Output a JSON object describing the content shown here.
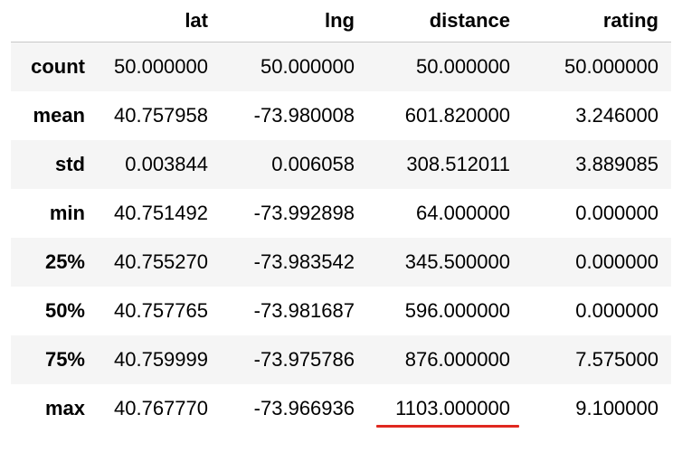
{
  "table": {
    "columns": [
      "lat",
      "lng",
      "distance",
      "rating"
    ],
    "rows": [
      {
        "label": "count",
        "values": [
          "50.000000",
          "50.000000",
          "50.000000",
          "50.000000"
        ]
      },
      {
        "label": "mean",
        "values": [
          "40.757958",
          "-73.980008",
          "601.820000",
          "3.246000"
        ]
      },
      {
        "label": "std",
        "values": [
          "0.003844",
          "0.006058",
          "308.512011",
          "3.889085"
        ]
      },
      {
        "label": "min",
        "values": [
          "40.751492",
          "-73.992898",
          "64.000000",
          "0.000000"
        ]
      },
      {
        "label": "25%",
        "values": [
          "40.755270",
          "-73.983542",
          "345.500000",
          "0.000000"
        ]
      },
      {
        "label": "50%",
        "values": [
          "40.757765",
          "-73.981687",
          "596.000000",
          "0.000000"
        ]
      },
      {
        "label": "75%",
        "values": [
          "40.759999",
          "-73.975786",
          "876.000000",
          "7.575000"
        ]
      },
      {
        "label": "max",
        "values": [
          "40.767770",
          "-73.966936",
          "1103.000000",
          "9.100000"
        ]
      }
    ]
  },
  "annotation": {
    "color": "#e0281f"
  }
}
